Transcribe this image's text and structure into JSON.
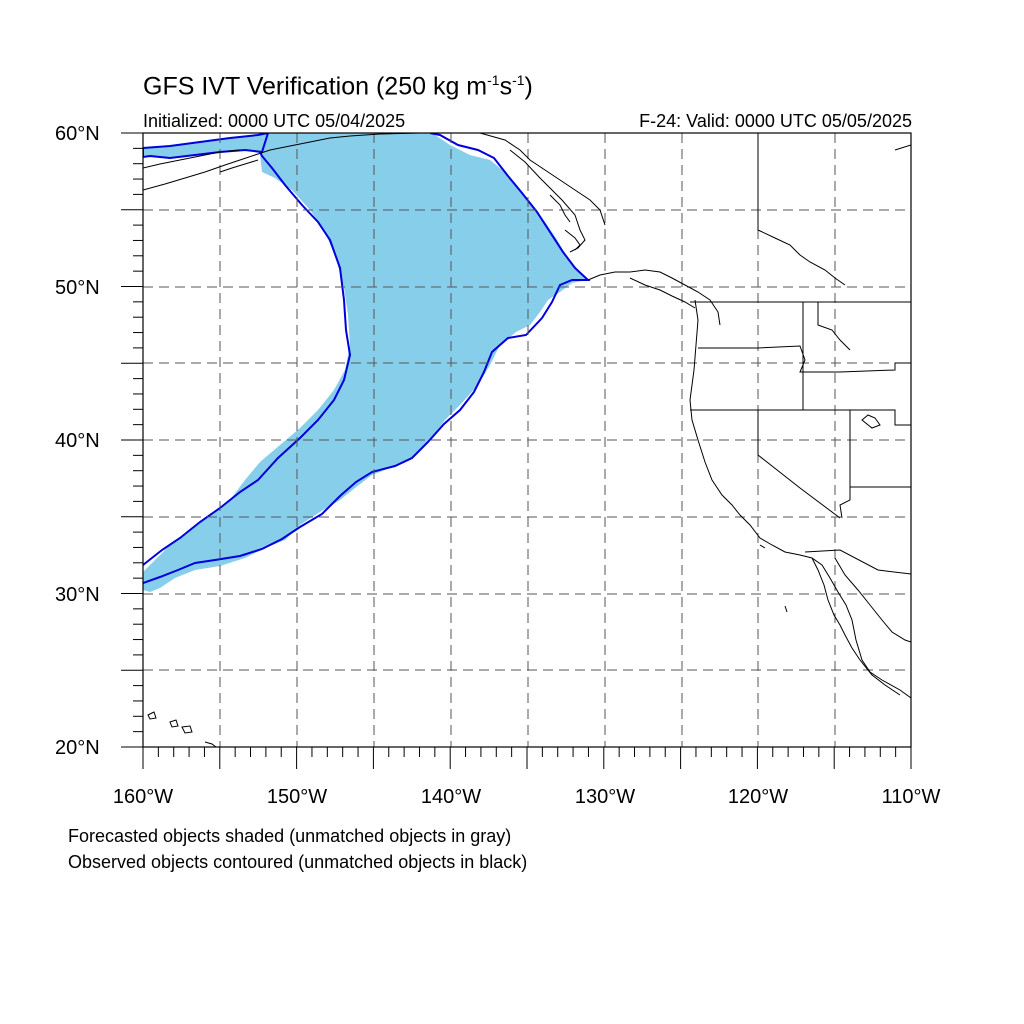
{
  "title": {
    "main": "GFS IVT Verification (250 kg m",
    "exp1": "-1",
    "mid": "s",
    "exp2": "-1",
    "end": ")"
  },
  "subtitle_left": "Initialized: 0000 UTC 05/04/2025",
  "subtitle_right": "F-24: Valid: 0000 UTC 05/05/2025",
  "lat_labels": [
    "60°N",
    "50°N",
    "40°N",
    "30°N",
    "20°N"
  ],
  "lon_labels": [
    "160°W",
    "150°W",
    "140°W",
    "130°W",
    "120°W",
    "110°W"
  ],
  "footnotes": [
    "Forecasted objects shaded (unmatched objects in gray)",
    "Observed objects contoured (unmatched objects in black)"
  ],
  "colors": {
    "forecast_fill": "#87ceeb",
    "observed_contour": "#0000dd",
    "coastline": "#000000",
    "grid": "#555555"
  },
  "map_extent": {
    "lon_min": -160,
    "lon_max": -110,
    "lat_min": 20,
    "lat_max": 60
  }
}
